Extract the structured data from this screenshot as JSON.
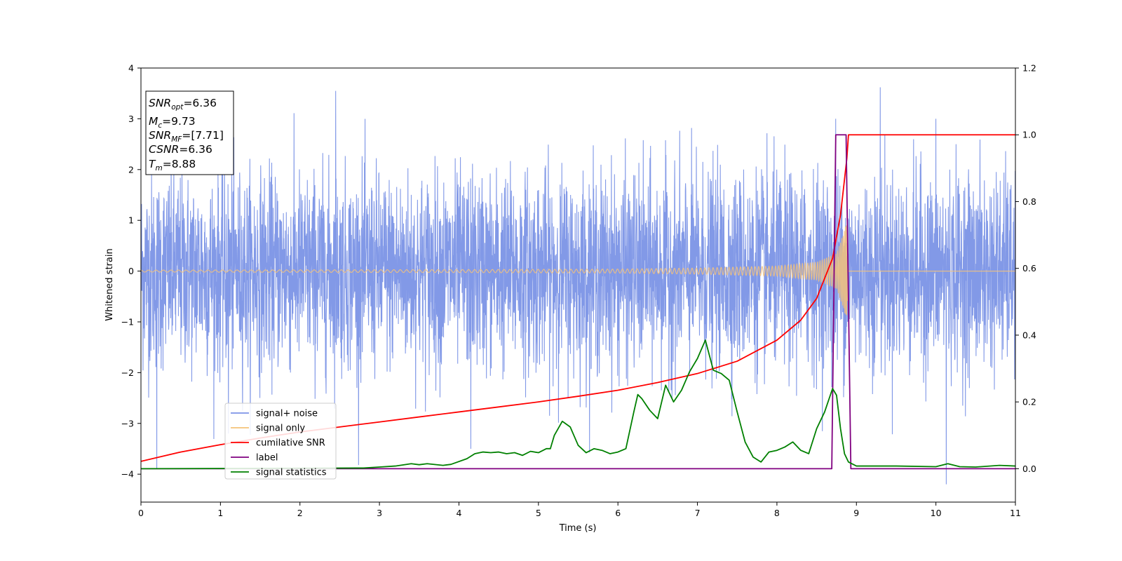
{
  "chart_data": {
    "type": "line",
    "xlabel": "Time (s)",
    "ylabel_left": "Whitened strain",
    "ylabel_right": "",
    "xlim": [
      0,
      11
    ],
    "ylim_left": [
      -4.55,
      4
    ],
    "ylim_right": [
      -0.1,
      1.2
    ],
    "xticks": [
      0,
      1,
      2,
      3,
      4,
      5,
      6,
      7,
      8,
      9,
      10,
      11
    ],
    "yticks_left": [
      -4,
      -3,
      -2,
      -1,
      0,
      1,
      2,
      3,
      4
    ],
    "yticks_right": [
      0.0,
      0.2,
      0.4,
      0.6,
      0.8,
      1.0,
      1.2
    ],
    "grid": false,
    "legend_placement": "lower-left",
    "info_box": {
      "snr_opt": {
        "main": "SNR",
        "sub": "opt",
        "value": "=6.36"
      },
      "mc": {
        "main": "M",
        "sub": "c",
        "value": "=9.73"
      },
      "snr_mf": {
        "main": "SNR",
        "sub": "MF",
        "value": "=[7.71]"
      },
      "csnr": {
        "main": "CSNR",
        "value": "=6.36"
      },
      "tm": {
        "main": "T",
        "sub": "m",
        "value": "=8.88"
      }
    },
    "series": [
      {
        "name": "signal+ noise",
        "axis": "left",
        "color": "#7b93e6",
        "description_of_values": "whitened noise, approx. normal with sigma about 0.95, spanning roughly -4.2 to 3.6 over t=0..11 s",
        "notable_peaks": [
          [
            0.2,
            -3.9
          ],
          [
            1.1,
            -3.2
          ],
          [
            2.45,
            3.55
          ],
          [
            4.15,
            -3.5
          ],
          [
            10.13,
            -4.2
          ],
          [
            9.3,
            3.62
          ],
          [
            8.74,
            3.0
          ],
          [
            10.0,
            3.0
          ]
        ]
      },
      {
        "name": "signal only",
        "axis": "left",
        "color": "#f5c27a",
        "description_of_values": "chirp with amplitude growing from about 0.02 at t=0 to about 1.0 near t=8.88 s, zero afterwards",
        "amplitude_points": [
          [
            0,
            0.02
          ],
          [
            4,
            0.03
          ],
          [
            6,
            0.04
          ],
          [
            7,
            0.06
          ],
          [
            8,
            0.1
          ],
          [
            8.5,
            0.18
          ],
          [
            8.75,
            0.35
          ],
          [
            8.85,
            0.8
          ],
          [
            8.88,
            1.0
          ],
          [
            8.9,
            0.0
          ],
          [
            11,
            0.0
          ]
        ]
      },
      {
        "name": "cumilative SNR",
        "axis": "right",
        "color": "#ff0000",
        "x": [
          0,
          0.5,
          1,
          1.5,
          2,
          2.5,
          3,
          3.5,
          4,
          4.5,
          5,
          5.5,
          6,
          6.5,
          7,
          7.5,
          8,
          8.3,
          8.5,
          8.7,
          8.8,
          8.88,
          8.9,
          11
        ],
        "y": [
          0.022,
          0.05,
          0.072,
          0.092,
          0.11,
          0.125,
          0.14,
          0.155,
          0.17,
          0.185,
          0.2,
          0.217,
          0.235,
          0.258,
          0.285,
          0.322,
          0.385,
          0.445,
          0.51,
          0.63,
          0.76,
          0.93,
          1.0,
          1.0
        ]
      },
      {
        "name": "label",
        "axis": "right",
        "color": "#800080",
        "x": [
          0,
          8.69,
          8.74,
          8.87,
          8.93,
          11
        ],
        "y": [
          0,
          0,
          1,
          1,
          0,
          0
        ]
      },
      {
        "name": "signal statistics",
        "axis": "right",
        "color": "#008000",
        "x": [
          0,
          2.8,
          3.0,
          3.2,
          3.4,
          3.5,
          3.6,
          3.8,
          3.9,
          4.1,
          4.2,
          4.3,
          4.4,
          4.5,
          4.6,
          4.7,
          4.8,
          4.9,
          5.0,
          5.1,
          5.15,
          5.2,
          5.3,
          5.4,
          5.5,
          5.6,
          5.7,
          5.8,
          5.9,
          6.0,
          6.1,
          6.2,
          6.25,
          6.3,
          6.4,
          6.5,
          6.6,
          6.7,
          6.8,
          6.9,
          7.0,
          7.1,
          7.2,
          7.3,
          7.4,
          7.5,
          7.6,
          7.7,
          7.8,
          7.9,
          8.0,
          8.1,
          8.2,
          8.3,
          8.4,
          8.5,
          8.6,
          8.7,
          8.75,
          8.8,
          8.85,
          8.9,
          9.0,
          9.2,
          9.5,
          10.0,
          10.15,
          10.3,
          10.5,
          10.8,
          11.0
        ],
        "y": [
          0.0,
          0.002,
          0.005,
          0.008,
          0.015,
          0.012,
          0.015,
          0.01,
          0.013,
          0.03,
          0.045,
          0.05,
          0.048,
          0.05,
          0.045,
          0.048,
          0.04,
          0.052,
          0.048,
          0.06,
          0.06,
          0.1,
          0.142,
          0.125,
          0.07,
          0.048,
          0.06,
          0.055,
          0.045,
          0.05,
          0.06,
          0.17,
          0.222,
          0.21,
          0.175,
          0.15,
          0.25,
          0.2,
          0.235,
          0.29,
          0.33,
          0.385,
          0.295,
          0.285,
          0.265,
          0.17,
          0.08,
          0.035,
          0.02,
          0.05,
          0.055,
          0.065,
          0.08,
          0.055,
          0.045,
          0.12,
          0.17,
          0.24,
          0.22,
          0.12,
          0.045,
          0.02,
          0.008,
          0.008,
          0.008,
          0.006,
          0.015,
          0.006,
          0.005,
          0.01,
          0.008
        ]
      }
    ]
  }
}
